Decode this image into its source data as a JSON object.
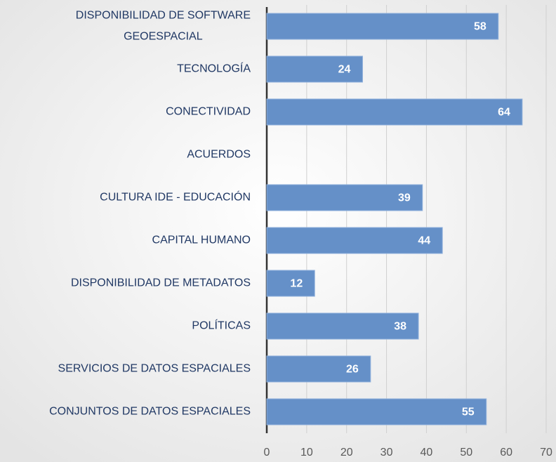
{
  "chart_data": {
    "type": "bar",
    "orientation": "horizontal",
    "categories": [
      "DISPONIBILIDAD DE SOFTWARE\nGEOESPACIAL",
      "TECNOLOGÍA",
      "CONECTIVIDAD",
      "ACUERDOS",
      "CULTURA IDE - EDUCACIÓN",
      "CAPITAL HUMANO",
      "DISPONIBILIDAD DE METADATOS",
      "POLÍTICAS",
      "SERVICIOS DE DATOS ESPACIALES",
      "CONJUNTOS DE DATOS ESPACIALES"
    ],
    "values": [
      58,
      24,
      64,
      null,
      39,
      44,
      12,
      38,
      26,
      55
    ],
    "color": "#6590c8",
    "xlim": [
      0,
      70
    ],
    "xticks": [
      0,
      10,
      20,
      30,
      40,
      50,
      60,
      70
    ],
    "grid": true
  }
}
